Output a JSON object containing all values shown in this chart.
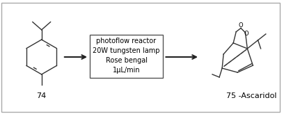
{
  "bg_color": "#f0f0f0",
  "border_color": "#cccccc",
  "molecule_color": "#333333",
  "arrow_color": "#222222",
  "box_text_lines": [
    "photoflow reactor",
    "20W tungsten lamp",
    "Rose bengal",
    "1μL/min"
  ],
  "label_74": "74",
  "label_75": "75 -Ascaridol",
  "text_fontsize": 7,
  "label_fontsize": 8
}
